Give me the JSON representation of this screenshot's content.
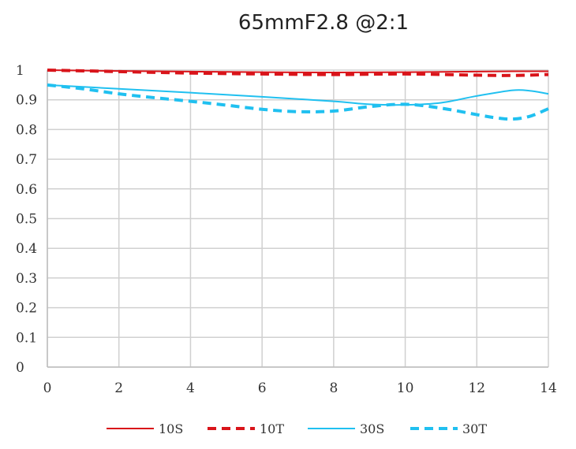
{
  "chart_data": {
    "type": "line",
    "title": "65mmF2.8 @2:1",
    "xlim": [
      0,
      14
    ],
    "ylim": [
      0,
      1
    ],
    "x_ticks": [
      "0",
      "2",
      "4",
      "6",
      "8",
      "10",
      "12",
      "14"
    ],
    "y_ticks": [
      "0",
      "0.1",
      "0.2",
      "0.3",
      "0.4",
      "0.5",
      "0.6",
      "0.7",
      "0.8",
      "0.9",
      "1"
    ],
    "grid": true,
    "legend_position": "bottom",
    "series": [
      {
        "name": "10S",
        "color": "#d9141a",
        "style": "solid",
        "x": [
          0,
          2,
          4,
          6,
          8,
          10,
          12,
          13,
          14
        ],
        "y": [
          1.0,
          0.997,
          0.995,
          0.993,
          0.992,
          0.993,
          0.995,
          0.996,
          0.996
        ]
      },
      {
        "name": "10T",
        "color": "#d9141a",
        "style": "dashed",
        "x": [
          0,
          2,
          4,
          6,
          8,
          10,
          12,
          13,
          14
        ],
        "y": [
          1.0,
          0.995,
          0.99,
          0.987,
          0.985,
          0.987,
          0.983,
          0.982,
          0.985
        ]
      },
      {
        "name": "30S",
        "color": "#20c0f0",
        "style": "solid",
        "x": [
          0,
          2,
          4,
          6,
          8,
          9,
          10,
          11,
          12,
          13,
          13.5,
          14
        ],
        "y": [
          0.95,
          0.937,
          0.924,
          0.91,
          0.895,
          0.885,
          0.883,
          0.89,
          0.913,
          0.932,
          0.93,
          0.92
        ]
      },
      {
        "name": "30T",
        "color": "#20c0f0",
        "style": "dashed",
        "x": [
          0,
          1,
          2,
          3,
          4,
          5,
          6,
          7,
          8,
          9,
          10,
          11,
          12,
          12.5,
          13,
          13.5,
          14
        ],
        "y": [
          0.95,
          0.937,
          0.92,
          0.907,
          0.895,
          0.882,
          0.868,
          0.86,
          0.862,
          0.877,
          0.885,
          0.872,
          0.85,
          0.84,
          0.835,
          0.845,
          0.87
        ]
      }
    ]
  }
}
